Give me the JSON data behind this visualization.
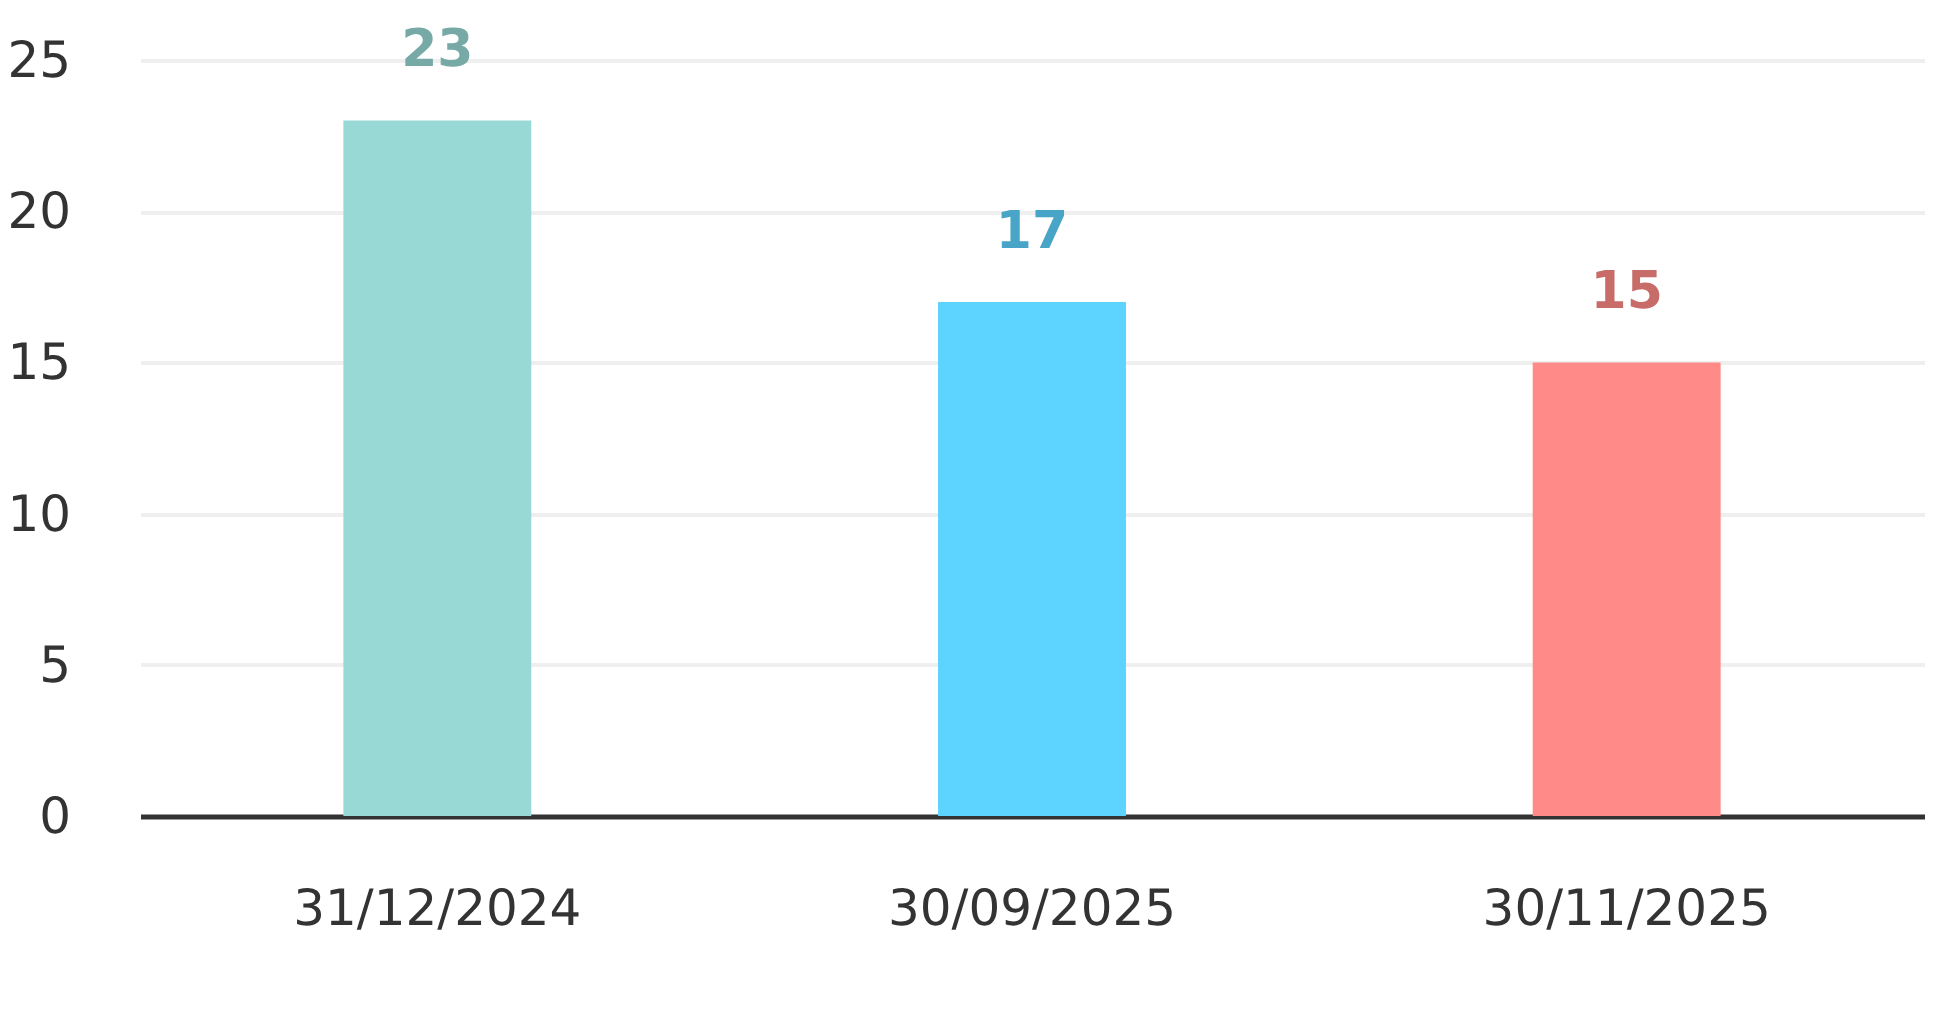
{
  "chart_data": {
    "type": "bar",
    "categories": [
      "31/12/2024",
      "30/09/2025",
      "30/11/2025"
    ],
    "values": [
      23,
      17,
      15
    ],
    "colors": [
      "#98d9d5",
      "#5dd3ff",
      "#ff8a87"
    ],
    "ylim": [
      0,
      25
    ],
    "yticks": [
      0,
      5,
      10,
      15,
      20,
      25
    ],
    "grid": "y",
    "data_labels": true,
    "legend": false
  }
}
